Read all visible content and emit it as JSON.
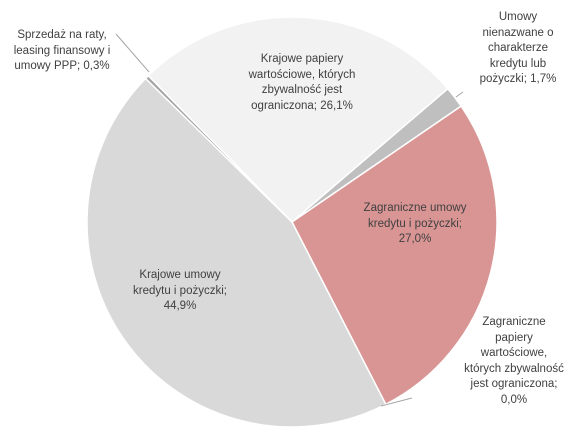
{
  "chart_data": {
    "type": "pie",
    "categories": [
      "Krajowe papiery wartościowe, których zbywalność jest ograniczona;",
      "Umowy nienazwane o charakterze kredytu lub pożyczki;",
      "Zagraniczne umowy kredytu i pożyczki;",
      "Zagraniczne papiery wartościowe, których zbywalność jest ograniczona;",
      "Krajowe umowy kredytu i pożyczki;",
      "Sprzedaż na raty, leasing finansowy i umowy PPP;"
    ],
    "values": [
      26.1,
      1.7,
      27.0,
      0.0,
      44.9,
      0.3
    ],
    "value_labels": [
      "26,1%",
      "1,7%",
      "27,0%",
      "0,0%",
      "44,9%",
      "0,3%"
    ],
    "colors": [
      "#f2f2f2",
      "#bfbfbf",
      "#d99594",
      "#c0504d",
      "#d9d9d9",
      "#a6a6a6"
    ]
  }
}
